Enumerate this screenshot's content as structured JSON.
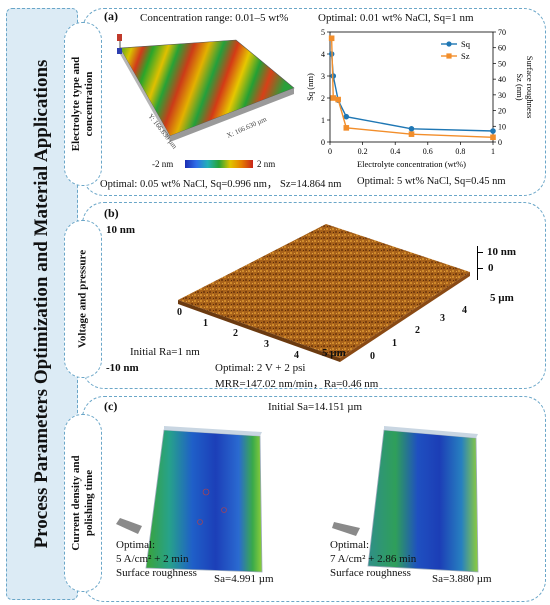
{
  "side_title": "Process Parameters Optimization and Material Applications",
  "panel_a": {
    "label": "(a)",
    "side_label": "Electrolyte type and concentration",
    "conc_range": "Concentration range: 0.01–5 wt%",
    "optimal_top": "Optimal: 0.01 wt% NaCl, Sq=1 nm",
    "bottom_left": "Optimal: 0.05 wt% NaCl, Sq=0.996 nm， Sz=14.864 nm",
    "bottom_right": "Optimal: 5 wt% NaCl, Sq=0.45 nm",
    "colorbar_min": "-2 nm",
    "colorbar_max": "2 nm",
    "axis_y_text": "Y: 166.630 µm",
    "axis_x_text": "X: 166.630 µm"
  },
  "chart_data": {
    "type": "line",
    "x": [
      0.01,
      0.02,
      0.05,
      0.1,
      0.5,
      1.0
    ],
    "series": [
      {
        "name": "Sq",
        "axis": "left",
        "values": [
          4.0,
          3.0,
          1.9,
          1.15,
          0.6,
          0.5
        ]
      },
      {
        "name": "Sz",
        "axis": "right",
        "values": [
          66,
          28,
          27,
          9,
          5,
          3
        ]
      }
    ],
    "xlabel": "Electrolyte concentration (wt%)",
    "ylabel_left": "Sq (nm)",
    "ylabel_right": "Sz (nm)",
    "ylabel_right2": "Surface roughness",
    "xlim": [
      0,
      1
    ],
    "ylim_left": [
      0,
      5
    ],
    "ylim_right": [
      0,
      70
    ],
    "x_ticks": [
      "0",
      "0.2",
      "0.4",
      "0.6",
      "0.8",
      "1"
    ],
    "y_left_ticks": [
      "0",
      "1",
      "2",
      "3",
      "4",
      "5"
    ],
    "y_right_ticks": [
      "0",
      "10",
      "20",
      "30",
      "40",
      "50",
      "60",
      "70"
    ],
    "colors": {
      "Sq": "#1f77b4",
      "Sz": "#f28e2b"
    },
    "legend": "top-right"
  },
  "panel_b": {
    "label": "(b)",
    "side_label": "Voltage and pressure",
    "z_top_left": "10 nm",
    "z_bottom_left": "-10 nm",
    "z_top_right": "10 nm",
    "z_zero_right": "0",
    "y_unit": "5 µm",
    "x_unit": "5 µm",
    "left_ticks": [
      "0",
      "1",
      "2",
      "3",
      "4"
    ],
    "right_ticks": [
      "0",
      "1",
      "2",
      "3",
      "4"
    ],
    "initial": "Initial Ra=1 nm",
    "optimal_line1": "Optimal: 2 V + 2 psi",
    "optimal_line2": "MRR=147.02 nm/min，Ra=0.46 nm"
  },
  "panel_c": {
    "label": "(c)",
    "side_label_line1": "Current density and",
    "side_label_line2": "polishing time",
    "initial": "Initial Sa=14.151 µm",
    "left_optimal": "Optimal:",
    "left_params": "5 A/cm² + 2 min",
    "left_rough": "Surface roughness",
    "left_sa": "Sa=4.991 µm",
    "right_optimal": "Optimal:",
    "right_params": "7 A/cm² + 2.86 min",
    "right_rough": "Surface roughness",
    "right_sa": "Sa=3.880 µm"
  }
}
